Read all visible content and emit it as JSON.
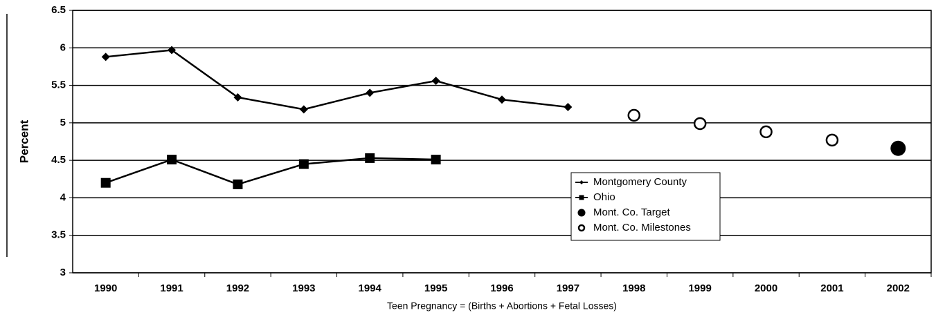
{
  "chart_data": {
    "type": "line",
    "x_label": "Teen Pregnancy = (Births + Abortions + Fetal Losses)",
    "y_label": "Percent",
    "categories": [
      "1990",
      "1991",
      "1992",
      "1993",
      "1994",
      "1995",
      "1996",
      "1997",
      "1998",
      "1999",
      "2000",
      "2001",
      "2002"
    ],
    "series": [
      {
        "name": "Montgomery County",
        "color": "#000000",
        "marker": "diamond",
        "line": true,
        "values": [
          5.88,
          5.97,
          5.34,
          5.18,
          5.4,
          5.56,
          5.31,
          5.21,
          null,
          null,
          null,
          null,
          null
        ]
      },
      {
        "name": "Ohio",
        "color": "#000000",
        "marker": "square",
        "line": true,
        "values": [
          4.2,
          4.51,
          4.18,
          4.45,
          4.53,
          4.51,
          null,
          null,
          null,
          null,
          null,
          null,
          null
        ]
      },
      {
        "name": "Mont. Co. Target",
        "color": "#000000",
        "marker": "circle",
        "line": false,
        "values": [
          null,
          null,
          null,
          null,
          null,
          null,
          null,
          null,
          null,
          null,
          null,
          null,
          4.66
        ]
      },
      {
        "name": "Mont. Co. Milestones",
        "color": "#000000",
        "marker": "open-circle",
        "line": false,
        "values": [
          null,
          null,
          null,
          null,
          null,
          null,
          null,
          null,
          5.1,
          4.99,
          4.88,
          4.77,
          null
        ]
      }
    ],
    "ylim": [
      3,
      6.5
    ],
    "yticks": [
      3,
      3.5,
      4,
      4.5,
      5,
      5.5,
      6,
      6.5
    ],
    "grid": true
  }
}
